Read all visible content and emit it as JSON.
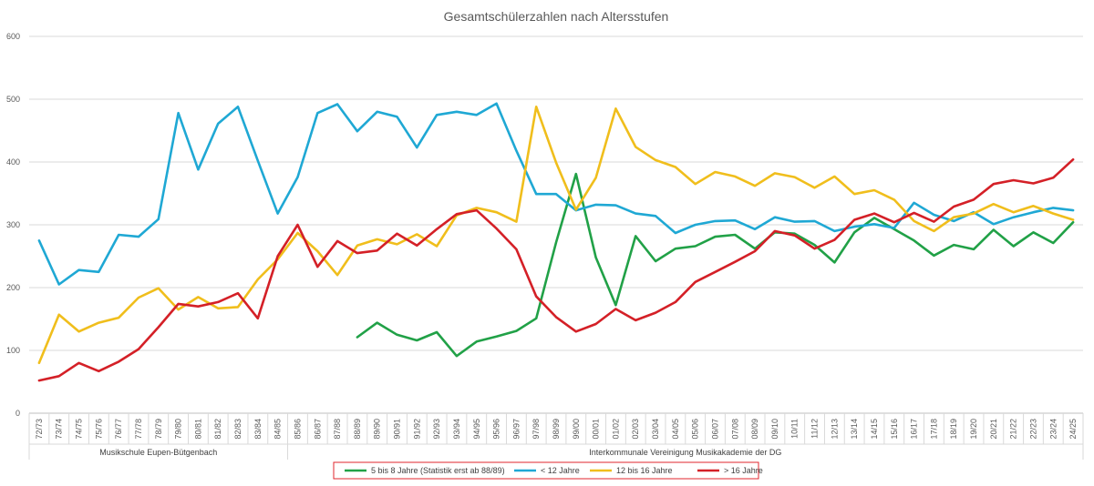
{
  "chart_data": {
    "type": "line",
    "title": "Gesamtschülerzahlen nach Altersstufen",
    "xlabel": "",
    "ylabel": "",
    "ylim": [
      0,
      600
    ],
    "yticks": [
      0,
      100,
      200,
      300,
      400,
      500,
      600
    ],
    "grid": "horizontal",
    "legend_position": "bottom",
    "categories": [
      "72/73",
      "73/74",
      "74/75",
      "75/76",
      "76/77",
      "77/78",
      "78/79",
      "79/80",
      "80/81",
      "81/82",
      "82/83",
      "83/84",
      "84/85",
      "85/86",
      "86/87",
      "87/88",
      "88/89",
      "89/90",
      "90/91",
      "91/92",
      "92/93",
      "93/94",
      "94/95",
      "95/96",
      "96/97",
      "97/98",
      "98/99",
      "99/00",
      "00/01",
      "01/02",
      "02/03",
      "03/04",
      "04/05",
      "05/06",
      "06/07",
      "07/08",
      "08/09",
      "09/10",
      "10/11",
      "11/12",
      "12/13",
      "13/14",
      "14/15",
      "15/16",
      "16/17",
      "17/18",
      "18/19",
      "19/20",
      "20/21",
      "21/22",
      "22/23",
      "23/24",
      "24/25"
    ],
    "groups": [
      {
        "label": "Musikschule Eupen-Bütgenbach",
        "from": 0,
        "to": 12
      },
      {
        "label": "Interkommunale Vereinigung Musikakademie der DG",
        "from": 13,
        "to": 52
      }
    ],
    "series": [
      {
        "name": "5 bis 8 Jahre (Statistik erst ab 88/89)",
        "color": "#21A147",
        "values": [
          null,
          null,
          null,
          null,
          null,
          null,
          null,
          null,
          null,
          null,
          null,
          null,
          null,
          null,
          null,
          null,
          121,
          144,
          125,
          116,
          129,
          91,
          114,
          122,
          131,
          151,
          272,
          381,
          248,
          172,
          282,
          242,
          262,
          266,
          281,
          284,
          262,
          288,
          286,
          268,
          240,
          288,
          311,
          293,
          275,
          251,
          268,
          261,
          292,
          266,
          288,
          271,
          304
        ]
      },
      {
        "name": "< 12 Jahre",
        "color": "#1FA8D4",
        "values": [
          275,
          205,
          228,
          225,
          284,
          281,
          309,
          478,
          388,
          461,
          488,
          402,
          318,
          376,
          478,
          492,
          449,
          480,
          472,
          423,
          475,
          480,
          475,
          493,
          418,
          349,
          349,
          323,
          332,
          331,
          318,
          314,
          287,
          300,
          306,
          307,
          293,
          312,
          305,
          306,
          290,
          297,
          301,
          295,
          335,
          316,
          306,
          320,
          301,
          312,
          320,
          327,
          323
        ]
      },
      {
        "name": "12 bis 16 Jahre",
        "color": "#F0BE1C",
        "values": [
          80,
          157,
          130,
          144,
          152,
          184,
          199,
          165,
          185,
          167,
          169,
          213,
          245,
          287,
          258,
          220,
          267,
          277,
          269,
          285,
          266,
          315,
          327,
          320,
          305,
          488,
          399,
          324,
          375,
          485,
          424,
          403,
          392,
          365,
          384,
          377,
          362,
          382,
          376,
          359,
          377,
          349,
          355,
          340,
          306,
          290,
          312,
          318,
          333,
          320,
          330,
          318,
          308
        ]
      },
      {
        "name": "> 16 Jahre",
        "color": "#D42027",
        "values": [
          52,
          59,
          80,
          67,
          82,
          102,
          137,
          174,
          170,
          177,
          191,
          151,
          250,
          300,
          233,
          274,
          255,
          259,
          286,
          267,
          293,
          317,
          323,
          294,
          261,
          186,
          153,
          130,
          142,
          166,
          148,
          160,
          177,
          209,
          225,
          241,
          258,
          290,
          283,
          262,
          276,
          308,
          318,
          304,
          319,
          305,
          329,
          340,
          365,
          371,
          366,
          375,
          404
        ]
      }
    ]
  }
}
